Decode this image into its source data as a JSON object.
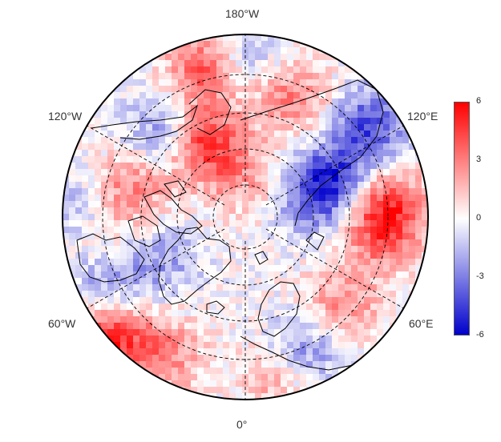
{
  "map": {
    "projection": "north polar stereographic",
    "longitude_labels": {
      "top": "180°W",
      "upper_left": "120°W",
      "upper_right": "120°E",
      "lower_left": "60°W",
      "lower_right": "60°E",
      "bottom": "0°"
    },
    "graticule": "dashed",
    "field": "gridded anomaly (red positive, blue negative)"
  },
  "colorbar": {
    "min": -6,
    "max": 6,
    "ticks": [
      "6",
      "3",
      "0",
      "-3",
      "-6"
    ],
    "colors": {
      "low": "#0000cc",
      "mid": "#ffffff",
      "high": "#ff0000"
    }
  }
}
